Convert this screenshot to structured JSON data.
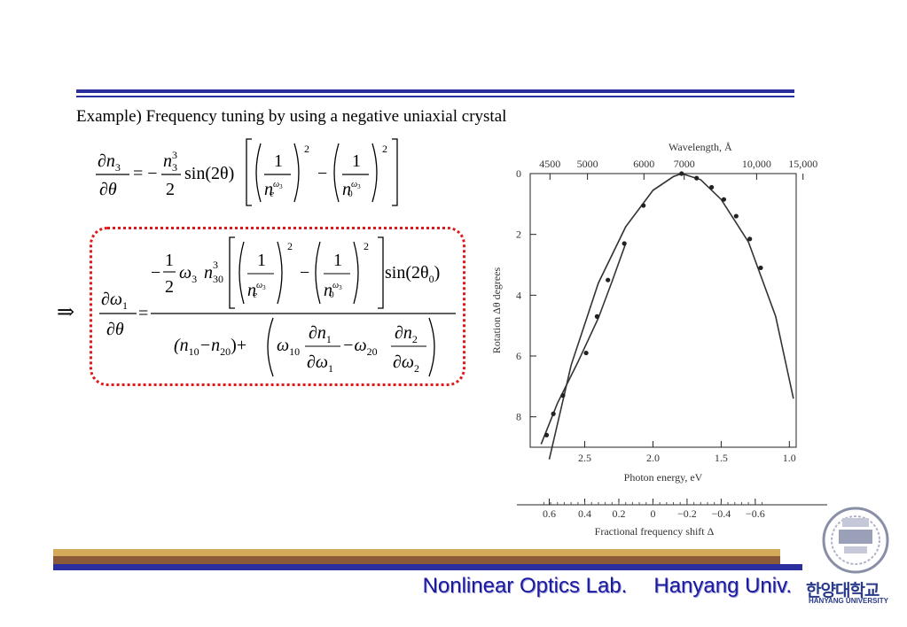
{
  "slide": {
    "heading": "Example) Frequency tuning by using a negative uniaxial crystal",
    "footer_lab": "Nonlinear Optics Lab.",
    "footer_univ": "Hanyang Univ.",
    "logo_korean": "한양대학교",
    "logo_english": "HANYANG UNIVERSITY",
    "colors": {
      "rule_blue": "#2b2f9e",
      "footer_gold": "#d4a95a",
      "footer_brown": "#8a5a3a",
      "box_red": "#e01818"
    }
  },
  "equation1": {
    "lhs_num": "∂n",
    "lhs_num_sub": "3",
    "lhs_den": "∂θ",
    "eq": "= −",
    "frac_num": "n",
    "frac_num_sub": "3",
    "frac_num_sup": "3",
    "frac_den": "2",
    "sin": "sin(2θ)",
    "one": "1",
    "ne": "n",
    "ne_sub": "e",
    "w3": "ω",
    "w3_sub": "3",
    "no": "n",
    "no_sub": "0",
    "sq": "2",
    "minus": "−"
  },
  "equation2": {
    "implies": "⇒",
    "lhs_num": "∂ω",
    "lhs_num_sub": "1",
    "lhs_den": "∂θ",
    "eq": "=",
    "num_minus": "−",
    "num_one": "1",
    "num_two": "2",
    "w3": "ω",
    "w3_sub": "3",
    "n30": "n",
    "n30_sup": "3",
    "n30_sub": "30",
    "sin": "sin(2θ",
    "sin_sub": "0",
    "sin_close": ")",
    "den_a": "(n",
    "den_a_sub": "10",
    "den_b": "−n",
    "den_b_sub": "20",
    "den_c": ")+",
    "w10": "ω",
    "w10_sub": "10",
    "dn1": "∂n",
    "dn1_sub": "1",
    "dw1": "∂ω",
    "dw1_sub": "1",
    "w20": "−ω",
    "w20_sub": "20",
    "dn2": "∂n",
    "dn2_sub": "2",
    "dw2": "∂ω",
    "dw2_sub": "2"
  },
  "chart_data": {
    "type": "scatter",
    "title": "",
    "xlabel": "Photon energy, eV",
    "ylabel": "Rotation Δθ degrees",
    "top_axis_label": "Wavelength, Å",
    "bottom2_axis_label": "Fractional frequency shift Δ",
    "xlim": [
      2.9,
      0.95
    ],
    "ylim": [
      0,
      9
    ],
    "y_inverted": true,
    "x_ticks": [
      {
        "v": 2.5,
        "label": "2.5"
      },
      {
        "v": 2.0,
        "label": "2.0"
      },
      {
        "v": 1.5,
        "label": "1.5"
      },
      {
        "v": 1.0,
        "label": "1.0"
      }
    ],
    "y_ticks": [
      {
        "v": 0,
        "label": "0"
      },
      {
        "v": 2,
        "label": "2"
      },
      {
        "v": 4,
        "label": "4"
      },
      {
        "v": 6,
        "label": "6"
      },
      {
        "v": 8,
        "label": "8"
      }
    ],
    "top_ticks": [
      {
        "e": 2.755,
        "label": "4500"
      },
      {
        "e": 2.48,
        "label": "5000"
      },
      {
        "e": 2.066,
        "label": "6000"
      },
      {
        "e": 1.771,
        "label": "7000"
      },
      {
        "e": 1.24,
        "label": "10,000"
      },
      {
        "e": 0.9,
        "label": "15,000"
      }
    ],
    "shift_ticks": [
      {
        "e": 2.76,
        "label": "0.6"
      },
      {
        "e": 2.5,
        "label": "0.4"
      },
      {
        "e": 2.25,
        "label": "0.2"
      },
      {
        "e": 2.0,
        "label": "0"
      },
      {
        "e": 1.75,
        "label": "−0.2"
      },
      {
        "e": 1.5,
        "label": "−0.4"
      },
      {
        "e": 1.25,
        "label": "−0.6"
      }
    ],
    "points": [
      {
        "x": 2.78,
        "y": 8.6
      },
      {
        "x": 2.73,
        "y": 7.9
      },
      {
        "x": 2.66,
        "y": 7.3
      },
      {
        "x": 2.49,
        "y": 5.9
      },
      {
        "x": 2.41,
        "y": 4.7
      },
      {
        "x": 2.33,
        "y": 3.5
      },
      {
        "x": 2.21,
        "y": 2.3
      },
      {
        "x": 2.07,
        "y": 1.05
      },
      {
        "x": 1.79,
        "y": 0.0
      },
      {
        "x": 1.68,
        "y": 0.15
      },
      {
        "x": 1.57,
        "y": 0.45
      },
      {
        "x": 1.48,
        "y": 0.85
      },
      {
        "x": 1.39,
        "y": 1.4
      },
      {
        "x": 1.29,
        "y": 2.15
      },
      {
        "x": 1.21,
        "y": 3.1
      }
    ],
    "curve_theory": [
      {
        "x": 2.76,
        "y": 9.4
      },
      {
        "x": 2.6,
        "y": 6.3
      },
      {
        "x": 2.4,
        "y": 3.6
      },
      {
        "x": 2.2,
        "y": 1.75
      },
      {
        "x": 2.0,
        "y": 0.55
      },
      {
        "x": 1.85,
        "y": 0.1
      },
      {
        "x": 1.79,
        "y": 0.0
      },
      {
        "x": 1.65,
        "y": 0.2
      },
      {
        "x": 1.5,
        "y": 0.85
      },
      {
        "x": 1.3,
        "y": 2.25
      },
      {
        "x": 1.1,
        "y": 4.7
      },
      {
        "x": 0.97,
        "y": 7.4
      }
    ],
    "curve_fit": [
      {
        "x": 2.82,
        "y": 8.9
      },
      {
        "x": 2.7,
        "y": 7.55
      },
      {
        "x": 2.55,
        "y": 6.2
      },
      {
        "x": 2.4,
        "y": 4.75
      },
      {
        "x": 2.3,
        "y": 3.55
      },
      {
        "x": 2.2,
        "y": 2.3
      }
    ]
  }
}
